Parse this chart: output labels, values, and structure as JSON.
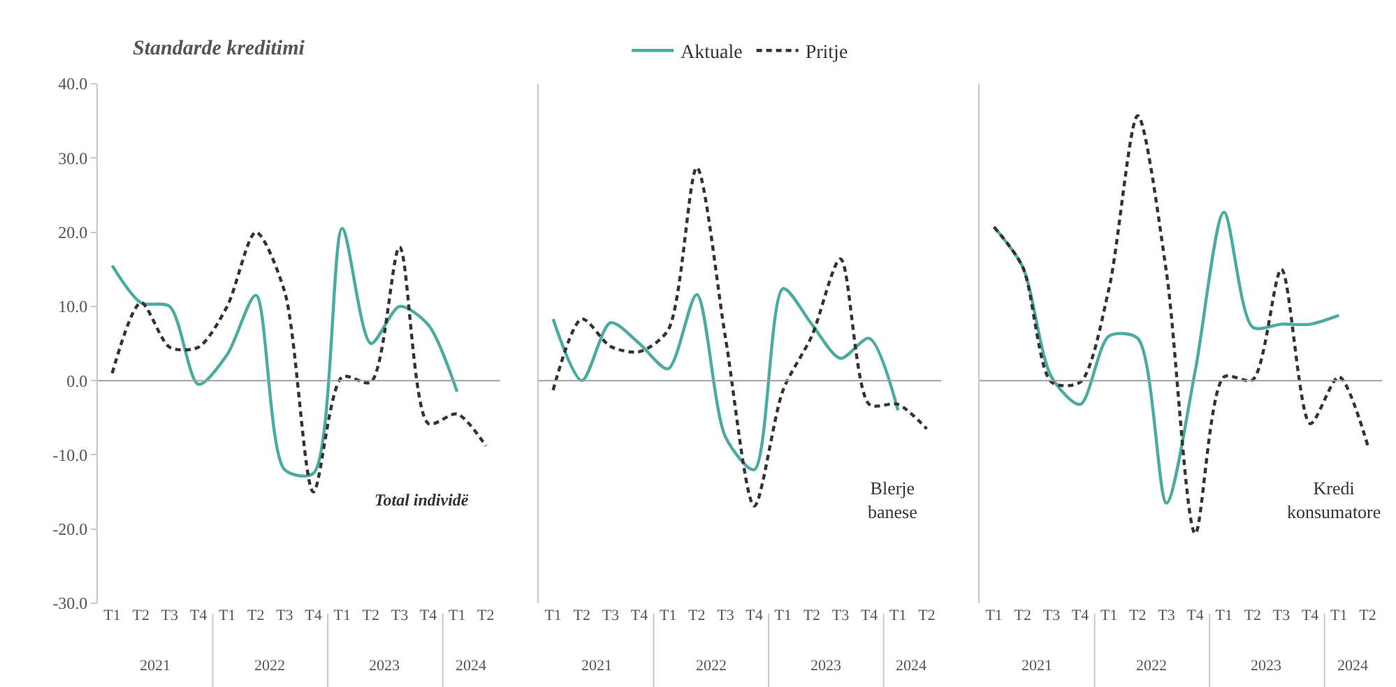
{
  "chart_data": [
    {
      "type": "line",
      "title": "Standarde kreditimi",
      "annotations": [
        "Total individë",
        "2021",
        "2022",
        "2023",
        "2024"
      ],
      "legend": "top",
      "tick_labels": true,
      "categories": [
        "T1",
        "T2",
        "T3",
        "T4",
        "T1",
        "T2",
        "T3",
        "T4",
        "T1",
        "T2",
        "T3",
        "T4",
        "T1",
        "T2"
      ],
      "ylim": [
        -30,
        40
      ],
      "yticks": [
        {
          "value": -30,
          "label": "-30.0"
        },
        {
          "value": -20,
          "label": "-20.0"
        },
        {
          "value": -10,
          "label": "-10.0"
        },
        {
          "value": 0,
          "label": "0.0"
        },
        {
          "value": 10,
          "label": "10.0"
        },
        {
          "value": 20,
          "label": "20.0"
        },
        {
          "value": 30,
          "label": "30.0"
        },
        {
          "value": 40,
          "label": "40.0"
        }
      ],
      "ref_lines": [
        {
          "axis": "y",
          "value": 0,
          "color": "#a0a0a0"
        }
      ],
      "series": [
        {
          "name": "Aktuale",
          "color": "#4aab9f",
          "line_style": "solid",
          "values": [
            15.5,
            10.5,
            10,
            -0.5,
            3.5,
            11.5,
            -12,
            -12.5,
            20.5,
            5,
            10,
            7.5,
            -1.5,
            null
          ]
        },
        {
          "name": "Pritje",
          "color": "#333333",
          "line_style": "dashed",
          "values": [
            1,
            10.5,
            4.5,
            4.5,
            10,
            20,
            12,
            -15,
            0.5,
            -0.2,
            18,
            -5.8,
            -4.5,
            -8.8
          ]
        }
      ]
    },
    {
      "type": "line",
      "annotations": [
        "Blerje banese",
        "2021",
        "2022",
        "2023",
        "2024"
      ],
      "tick_labels": "x",
      "categories": [
        "T1",
        "T2",
        "T3",
        "T4",
        "T1",
        "T2",
        "T3",
        "T4",
        "T1",
        "T2",
        "T3",
        "T4",
        "T1",
        "T2"
      ],
      "ylim": [
        -30,
        40
      ],
      "ref_lines": [
        {
          "axis": "y",
          "value": 0,
          "color": "#a0a0a0"
        }
      ],
      "series": [
        {
          "color": "#4aab9f",
          "line_style": "solid",
          "values": [
            8.3,
            0,
            7.8,
            5,
            1.6,
            11.6,
            -7.6,
            -12,
            12.4,
            7.6,
            3,
            5.7,
            -4,
            null
          ]
        },
        {
          "color": "#333333",
          "line_style": "dashed",
          "values": [
            -1.3,
            8.3,
            4.6,
            3.9,
            6.8,
            28.7,
            5.7,
            -16.9,
            -1.3,
            6,
            16.4,
            -3.2,
            -3.2,
            -6.5
          ]
        }
      ]
    },
    {
      "type": "line",
      "annotations": [
        "Kredi konsumatore",
        "2021",
        "2022",
        "2023",
        "2024"
      ],
      "tick_labels": "x",
      "categories": [
        "T1",
        "T2",
        "T3",
        "T4",
        "T1",
        "T2",
        "T3",
        "T4",
        "T1",
        "T2",
        "T3",
        "T4",
        "T1",
        "T2"
      ],
      "ylim": [
        -30,
        40
      ],
      "ref_lines": [
        {
          "axis": "y",
          "value": 0,
          "color": "#a0a0a0"
        }
      ],
      "series": [
        {
          "color": "#4aab9f",
          "line_style": "solid",
          "values": [
            20.7,
            15.3,
            0.5,
            -3.2,
            6,
            5.7,
            -16.5,
            1.3,
            22.7,
            7.2,
            7.6,
            7.6,
            8.8,
            null
          ]
        },
        {
          "color": "#333333",
          "line_style": "dashed",
          "values": [
            20.7,
            15.3,
            -0.2,
            -0.2,
            12.4,
            35.7,
            14.6,
            -20.6,
            0.5,
            0.1,
            15,
            -5.8,
            0.5,
            -8.7
          ]
        }
      ]
    }
  ]
}
